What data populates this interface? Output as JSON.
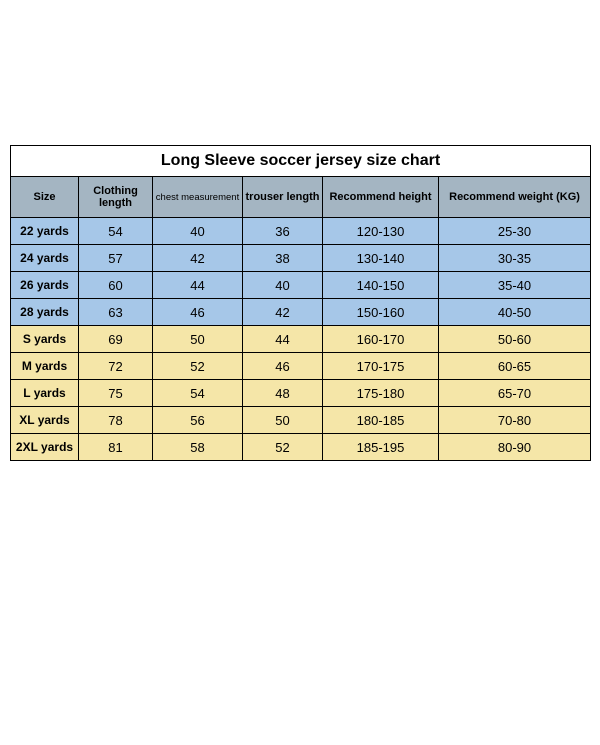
{
  "title": "Long Sleeve soccer jersey size chart",
  "columns": [
    "Size",
    "Clothing length",
    "chest measurement",
    "trouser length",
    "Recommend height",
    "Recommend weight (KG)"
  ],
  "col_widths_class": [
    "col-size",
    "col-cloth",
    "col-chest",
    "col-trouser",
    "col-height",
    "col-weight"
  ],
  "colors": {
    "header_bg": "#a4b5c2",
    "blue_row": "#a6c7e8",
    "yellow_row": "#f5e6a8",
    "border": "#000000"
  },
  "rows": [
    {
      "group": "blue",
      "cells": [
        "22 yards",
        "54",
        "40",
        "36",
        "120-130",
        "25-30"
      ]
    },
    {
      "group": "blue",
      "cells": [
        "24 yards",
        "57",
        "42",
        "38",
        "130-140",
        "30-35"
      ]
    },
    {
      "group": "blue",
      "cells": [
        "26 yards",
        "60",
        "44",
        "40",
        "140-150",
        "35-40"
      ]
    },
    {
      "group": "blue",
      "cells": [
        "28 yards",
        "63",
        "46",
        "42",
        "150-160",
        "40-50"
      ]
    },
    {
      "group": "yellow",
      "cells": [
        "S yards",
        "69",
        "50",
        "44",
        "160-170",
        "50-60"
      ]
    },
    {
      "group": "yellow",
      "cells": [
        "M yards",
        "72",
        "52",
        "46",
        "170-175",
        "60-65"
      ]
    },
    {
      "group": "yellow",
      "cells": [
        "L yards",
        "75",
        "54",
        "48",
        "175-180",
        "65-70"
      ]
    },
    {
      "group": "yellow",
      "cells": [
        "XL yards",
        "78",
        "56",
        "50",
        "180-185",
        "70-80"
      ]
    },
    {
      "group": "yellow",
      "cells": [
        "2XL yards",
        "81",
        "58",
        "52",
        "185-195",
        "80-90"
      ]
    }
  ]
}
